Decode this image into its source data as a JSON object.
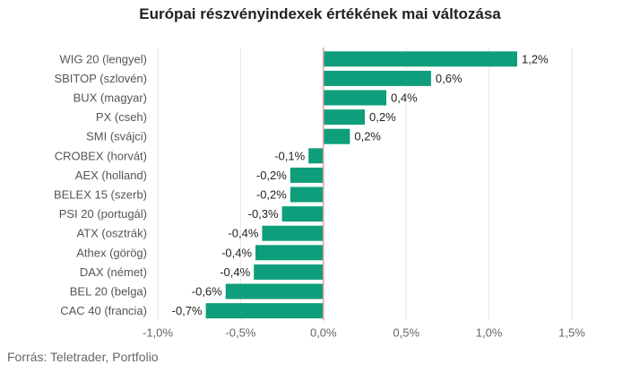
{
  "chart_data": {
    "type": "bar",
    "orientation": "horizontal",
    "title": "Európai részvényindexek értékének mai változása",
    "categories": [
      "WIG 20 (lengyel)",
      "SBITOP (szlovén)",
      "BUX (magyar)",
      "PX (cseh)",
      "SMI (svájci)",
      "CROBEX (horvát)",
      "AEX (holland)",
      "BELEX 15 (szerb)",
      "PSI 20 (portugál)",
      "ATX (osztrák)",
      "Athex (görög)",
      "DAX (német)",
      "BEL 20 (belga)",
      "CAC 40 (francia)"
    ],
    "values": [
      1.17,
      0.65,
      0.38,
      0.25,
      0.16,
      -0.09,
      -0.2,
      -0.2,
      -0.25,
      -0.37,
      -0.41,
      -0.42,
      -0.59,
      -0.71
    ],
    "value_labels": [
      "1,2%",
      "0,6%",
      "0,4%",
      "0,2%",
      "0,2%",
      "-0,1%",
      "-0,2%",
      "-0,2%",
      "-0,3%",
      "-0,4%",
      "-0,4%",
      "-0,4%",
      "-0,6%",
      "-0,7%"
    ],
    "xlim": [
      -1.0,
      1.5
    ],
    "xticks": [
      -1.0,
      -0.5,
      0.0,
      0.5,
      1.0,
      1.5
    ],
    "xtick_labels": [
      "-1,0%",
      "-0,5%",
      "0,0%",
      "0,5%",
      "1,0%",
      "1,5%"
    ],
    "grid": "vertical",
    "bar_color": "#0f9e7b",
    "zero_line_color": "#e8a0a0",
    "grid_color": "#e6e6e6"
  },
  "source": "Forrás: Teletrader, Portfolio"
}
